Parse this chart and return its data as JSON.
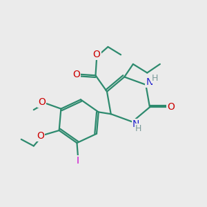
{
  "bg_color": "#ebebeb",
  "bond_color": "#2d8a6e",
  "N_color": "#2020cc",
  "O_color": "#cc0000",
  "I_color": "#cc00cc",
  "H_color": "#7a9a9a",
  "line_width": 1.6,
  "fig_size": [
    3.0,
    3.0
  ],
  "dpi": 100,
  "xlim": [
    0,
    10
  ],
  "ylim": [
    0,
    10
  ]
}
